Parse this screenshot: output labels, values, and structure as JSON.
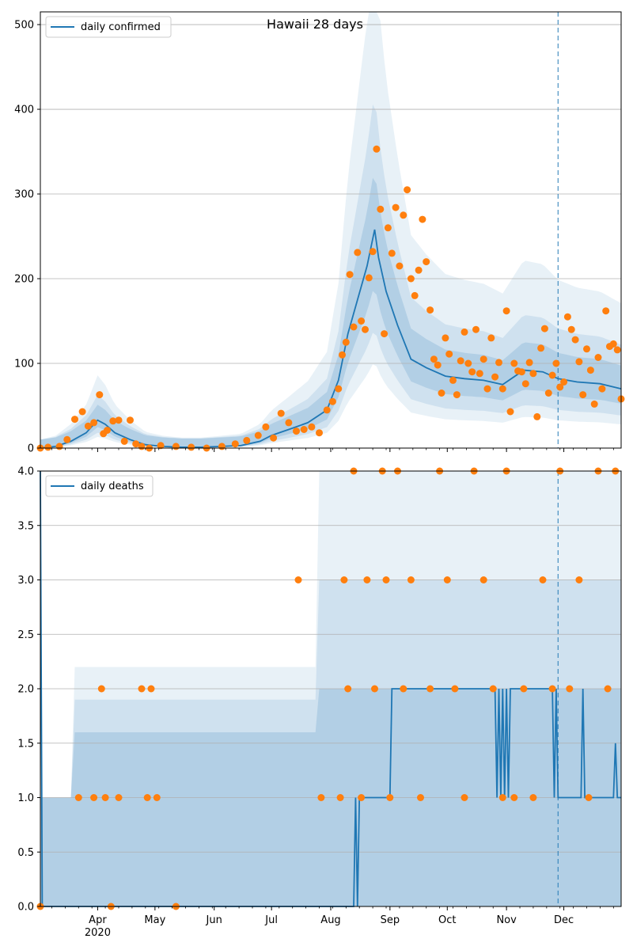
{
  "colors": {
    "line": "#1f77b4",
    "observed": "#ff7f0e",
    "band": "#1f77b4",
    "grid": "#b0b0b0",
    "axis": "#000000",
    "marker_line": "#1f77b4"
  },
  "chart_data": [
    {
      "type": "line",
      "title": "Hawaii 28 days",
      "xlabel": "",
      "ylabel": "",
      "xlim": [
        "2020-03-02",
        "2020-12-31"
      ],
      "ylim": [
        0,
        515
      ],
      "yticks": [
        0,
        100,
        200,
        300,
        400,
        500
      ],
      "grid": true,
      "legend": {
        "position": "top-left",
        "entries": [
          "daily confirmed"
        ]
      },
      "forecast_start": "2020-11-28",
      "series": [
        {
          "name": "daily confirmed",
          "style": "line",
          "x": [
            "2020-03-02",
            "2020-03-10",
            "2020-03-18",
            "2020-03-26",
            "2020-04-01",
            "2020-04-05",
            "2020-04-10",
            "2020-04-18",
            "2020-04-26",
            "2020-05-05",
            "2020-05-15",
            "2020-05-25",
            "2020-06-05",
            "2020-06-15",
            "2020-06-25",
            "2020-07-01",
            "2020-07-10",
            "2020-07-20",
            "2020-07-30",
            "2020-08-05",
            "2020-08-10",
            "2020-08-15",
            "2020-08-20",
            "2020-08-24",
            "2020-08-26",
            "2020-08-30",
            "2020-09-05",
            "2020-09-12",
            "2020-09-20",
            "2020-09-30",
            "2020-10-10",
            "2020-10-20",
            "2020-10-30",
            "2020-11-10",
            "2020-11-20",
            "2020-11-28",
            "2020-12-08",
            "2020-12-20",
            "2020-12-31"
          ],
          "y": [
            0,
            2,
            8,
            18,
            33,
            28,
            18,
            10,
            4,
            2,
            1,
            1,
            2,
            3,
            8,
            15,
            22,
            30,
            45,
            80,
            135,
            175,
            215,
            258,
            225,
            185,
            145,
            105,
            95,
            85,
            82,
            80,
            75,
            92,
            90,
            82,
            78,
            76,
            70
          ]
        },
        {
          "name": "observed confirmed",
          "style": "points",
          "x": [
            "2020-03-02",
            "2020-03-06",
            "2020-03-12",
            "2020-03-16",
            "2020-03-20",
            "2020-03-24",
            "2020-03-27",
            "2020-03-30",
            "2020-04-02",
            "2020-04-04",
            "2020-04-06",
            "2020-04-09",
            "2020-04-12",
            "2020-04-15",
            "2020-04-18",
            "2020-04-21",
            "2020-04-24",
            "2020-04-28",
            "2020-05-04",
            "2020-05-12",
            "2020-05-20",
            "2020-05-28",
            "2020-06-05",
            "2020-06-12",
            "2020-06-18",
            "2020-06-24",
            "2020-06-28",
            "2020-07-02",
            "2020-07-06",
            "2020-07-10",
            "2020-07-14",
            "2020-07-18",
            "2020-07-22",
            "2020-07-26",
            "2020-07-30",
            "2020-08-02",
            "2020-08-05",
            "2020-08-07",
            "2020-08-09",
            "2020-08-11",
            "2020-08-13",
            "2020-08-15",
            "2020-08-17",
            "2020-08-19",
            "2020-08-21",
            "2020-08-23",
            "2020-08-25",
            "2020-08-27",
            "2020-08-29",
            "2020-08-31",
            "2020-09-02",
            "2020-09-04",
            "2020-09-06",
            "2020-09-08",
            "2020-09-10",
            "2020-09-12",
            "2020-09-14",
            "2020-09-16",
            "2020-09-18",
            "2020-09-20",
            "2020-09-22",
            "2020-09-24",
            "2020-09-26",
            "2020-09-28",
            "2020-09-30",
            "2020-10-02",
            "2020-10-04",
            "2020-10-06",
            "2020-10-08",
            "2020-10-10",
            "2020-10-12",
            "2020-10-14",
            "2020-10-16",
            "2020-10-18",
            "2020-10-20",
            "2020-10-22",
            "2020-10-24",
            "2020-10-26",
            "2020-10-28",
            "2020-10-30",
            "2020-11-01",
            "2020-11-03",
            "2020-11-05",
            "2020-11-07",
            "2020-11-09",
            "2020-11-11",
            "2020-11-13",
            "2020-11-15",
            "2020-11-17",
            "2020-11-19",
            "2020-11-21",
            "2020-11-23",
            "2020-11-25",
            "2020-11-27",
            "2020-11-29",
            "2020-12-01",
            "2020-12-03",
            "2020-12-05",
            "2020-12-07",
            "2020-12-09",
            "2020-12-11",
            "2020-12-13",
            "2020-12-15",
            "2020-12-17",
            "2020-12-19",
            "2020-12-21",
            "2020-12-23",
            "2020-12-25",
            "2020-12-27",
            "2020-12-29",
            "2020-12-31"
          ],
          "y": [
            0,
            1,
            2,
            10,
            34,
            43,
            26,
            30,
            63,
            17,
            21,
            32,
            33,
            8,
            33,
            5,
            2,
            0,
            3,
            2,
            1,
            0,
            2,
            5,
            9,
            15,
            25,
            12,
            41,
            30,
            20,
            22,
            25,
            18,
            45,
            55,
            70,
            110,
            125,
            205,
            143,
            231,
            150,
            140,
            201,
            232,
            353,
            282,
            135,
            260,
            230,
            284,
            215,
            275,
            305,
            200,
            180,
            210,
            270,
            220,
            163,
            105,
            98,
            65,
            130,
            111,
            80,
            63,
            103,
            137,
            100,
            90,
            140,
            88,
            105,
            70,
            130,
            84,
            101,
            70,
            162,
            43,
            100,
            91,
            90,
            76,
            101,
            88,
            37,
            118,
            141,
            65,
            86,
            100,
            72,
            78,
            155,
            140,
            128,
            102,
            63,
            117,
            92,
            52,
            107,
            70,
            162,
            120,
            123,
            116,
            58
          ],
          "note": "observed points"
        }
      ]
    },
    {
      "type": "line",
      "title": "",
      "xlabel": "",
      "ylabel": "",
      "xlim": [
        "2020-03-02",
        "2020-12-31"
      ],
      "ylim": [
        0,
        4.0
      ],
      "yticks": [
        0.0,
        0.5,
        1.0,
        1.5,
        2.0,
        2.5,
        3.0,
        3.5,
        4.0
      ],
      "xticks": [
        "Apr",
        "May",
        "Jun",
        "Jul",
        "Aug",
        "Sep",
        "Oct",
        "Nov",
        "Dec"
      ],
      "xtick_year": "2020",
      "grid": true,
      "legend": {
        "position": "top-left",
        "entries": [
          "daily deaths"
        ]
      },
      "forecast_start": "2020-11-28",
      "series": [
        {
          "name": "daily deaths",
          "style": "line",
          "x": [
            "2020-03-02",
            "2020-03-03",
            "2020-08-13",
            "2020-08-14",
            "2020-08-15",
            "2020-08-16",
            "2020-09-01",
            "2020-09-02",
            "2020-10-26",
            "2020-10-27",
            "2020-10-28",
            "2020-10-29",
            "2020-10-30",
            "2020-10-31",
            "2020-11-01",
            "2020-11-02",
            "2020-11-03",
            "2020-11-25",
            "2020-11-26",
            "2020-11-27",
            "2020-11-28",
            "2020-12-10",
            "2020-12-11",
            "2020-12-12",
            "2020-12-27",
            "2020-12-28",
            "2020-12-29",
            "2020-12-31"
          ],
          "y": [
            4,
            0,
            0,
            1,
            0,
            1,
            1,
            2,
            2,
            1,
            2,
            1,
            2,
            1,
            2,
            1,
            2,
            2,
            1,
            2,
            1,
            1,
            2,
            1,
            1,
            1.5,
            1,
            1
          ]
        },
        {
          "name": "observed deaths",
          "style": "points",
          "x": [
            "2020-03-02",
            "2020-03-22",
            "2020-03-30",
            "2020-04-03",
            "2020-04-05",
            "2020-04-08",
            "2020-04-12",
            "2020-04-24",
            "2020-04-27",
            "2020-04-29",
            "2020-05-02",
            "2020-05-12",
            "2020-07-15",
            "2020-07-27",
            "2020-08-06",
            "2020-08-08",
            "2020-08-10",
            "2020-08-13",
            "2020-08-17",
            "2020-08-20",
            "2020-08-24",
            "2020-08-28",
            "2020-08-30",
            "2020-09-01",
            "2020-09-05",
            "2020-09-08",
            "2020-09-12",
            "2020-09-17",
            "2020-09-22",
            "2020-09-27",
            "2020-10-01",
            "2020-10-05",
            "2020-10-10",
            "2020-10-15",
            "2020-10-20",
            "2020-10-25",
            "2020-10-30",
            "2020-11-01",
            "2020-11-05",
            "2020-11-10",
            "2020-11-15",
            "2020-11-20",
            "2020-11-25",
            "2020-11-29",
            "2020-12-04",
            "2020-12-09",
            "2020-12-14",
            "2020-12-19",
            "2020-12-24",
            "2020-12-28"
          ],
          "y": [
            0,
            1,
            1,
            2,
            1,
            0,
            1,
            2,
            1,
            2,
            1,
            0,
            3,
            1,
            1,
            3,
            2,
            4,
            1,
            3,
            2,
            4,
            3,
            1,
            4,
            2,
            3,
            1,
            2,
            4,
            3,
            2,
            1,
            4,
            3,
            2,
            1,
            4,
            1,
            2,
            1,
            3,
            2,
            4,
            2,
            3,
            1,
            4,
            2,
            4
          ]
        }
      ]
    }
  ]
}
